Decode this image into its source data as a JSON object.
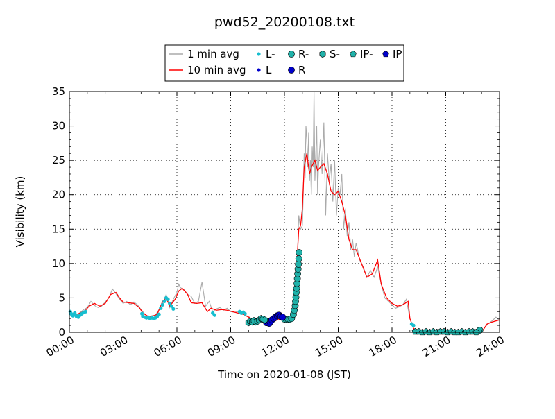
{
  "chart_data": {
    "type": "line",
    "title": "pwd52_20200108.txt",
    "xlabel": "Time on 2020-01-08 (JST)",
    "ylabel": "Visibility (km)",
    "x_unit": "hours since 00:00 JST",
    "xlim": [
      0,
      24
    ],
    "ylim": [
      0,
      35
    ],
    "x_ticks": [
      0,
      3,
      6,
      9,
      12,
      15,
      18,
      21,
      24
    ],
    "x_tick_labels": [
      "00:00",
      "03:00",
      "06:00",
      "09:00",
      "12:00",
      "15:00",
      "18:00",
      "21:00",
      "24:00"
    ],
    "y_ticks": [
      0,
      5,
      10,
      15,
      20,
      25,
      30,
      35
    ],
    "y_tick_labels": [
      "0",
      "5",
      "10",
      "15",
      "20",
      "25",
      "30",
      "35"
    ],
    "grid": true,
    "legend_position": "top-center",
    "legend": [
      {
        "label": "1 min avg",
        "kind": "line",
        "color": "#aaaaaa"
      },
      {
        "label": "L-",
        "kind": "dot",
        "color": "#17becf"
      },
      {
        "label": "R-",
        "kind": "circle",
        "color": "#20b2aa"
      },
      {
        "label": "S-",
        "kind": "hexagon",
        "color": "#20b2aa"
      },
      {
        "label": "IP-",
        "kind": "pentagon",
        "color": "#20b2aa"
      },
      {
        "label": "IP",
        "kind": "pentagon",
        "color": "#0000cc"
      },
      {
        "label": "10 min avg",
        "kind": "line",
        "color": "#ff0000"
      },
      {
        "label": "L",
        "kind": "dot",
        "color": "#0000cc"
      },
      {
        "label": "R",
        "kind": "circle",
        "color": "#0000cc"
      }
    ],
    "series": [
      {
        "name": "10 min avg",
        "color": "#ff0000",
        "x": [
          0.0,
          0.3,
          0.6,
          0.9,
          1.1,
          1.4,
          1.7,
          2.0,
          2.3,
          2.6,
          2.8,
          3.0,
          3.3,
          3.6,
          3.9,
          4.1,
          4.4,
          4.7,
          4.9,
          5.2,
          5.4,
          5.6,
          5.9,
          6.1,
          6.3,
          6.6,
          6.8,
          7.1,
          7.4,
          7.7,
          7.9,
          8.2,
          8.5,
          8.8,
          9.1,
          9.4,
          9.7,
          10.0,
          10.3,
          10.6,
          10.9,
          11.2,
          11.5,
          11.8,
          12.1,
          12.3,
          12.5,
          12.65,
          12.8,
          12.9,
          13.0,
          13.1,
          13.25,
          13.4,
          13.5,
          13.6,
          13.7,
          13.85,
          14.0,
          14.2,
          14.4,
          14.6,
          14.8,
          15.0,
          15.2,
          15.4,
          15.6,
          15.8,
          16.0,
          16.3,
          16.6,
          16.9,
          17.2,
          17.4,
          17.7,
          18.0,
          18.3,
          18.6,
          18.9,
          19.0,
          19.2,
          19.4,
          19.7,
          20.0,
          20.5,
          21.0,
          21.5,
          22.0,
          22.5,
          23.0,
          23.3,
          23.6,
          24.0
        ],
        "y": [
          2.8,
          2.5,
          2.8,
          3.2,
          3.8,
          4.2,
          3.8,
          4.2,
          5.5,
          5.8,
          5.0,
          4.4,
          4.3,
          4.2,
          3.6,
          2.8,
          2.3,
          2.4,
          2.6,
          4.5,
          5.0,
          3.8,
          4.8,
          6.0,
          6.4,
          5.5,
          4.3,
          4.2,
          4.3,
          3.0,
          3.5,
          3.2,
          3.3,
          3.2,
          3.0,
          2.8,
          2.6,
          2.2,
          1.8,
          1.6,
          1.5,
          1.8,
          1.7,
          1.9,
          1.9,
          2.0,
          2.5,
          8.0,
          15.0,
          15.5,
          18.0,
          24.0,
          26.0,
          23.0,
          24.0,
          24.5,
          25.0,
          23.5,
          24.0,
          24.5,
          23.0,
          20.5,
          20.0,
          20.5,
          19.0,
          17.0,
          13.5,
          12.0,
          12.0,
          10.0,
          8.0,
          8.5,
          10.5,
          7.0,
          5.0,
          4.2,
          3.8,
          4.0,
          4.5,
          2.0,
          0.6,
          0.1,
          0.0,
          0.0,
          0.0,
          0.0,
          0.0,
          0.0,
          0.0,
          0.0,
          1.2,
          1.5,
          1.8
        ]
      },
      {
        "name": "1 min avg",
        "color": "#aaaaaa",
        "x": [
          0.0,
          0.2,
          0.4,
          0.6,
          0.8,
          1.0,
          1.2,
          1.4,
          1.6,
          1.8,
          2.0,
          2.2,
          2.4,
          2.6,
          2.8,
          3.0,
          3.2,
          3.4,
          3.6,
          3.8,
          4.0,
          4.2,
          4.4,
          4.6,
          4.8,
          5.0,
          5.2,
          5.4,
          5.6,
          5.8,
          6.0,
          6.1,
          6.2,
          6.4,
          6.6,
          6.8,
          7.0,
          7.2,
          7.4,
          7.6,
          7.8,
          8.0,
          8.2,
          8.4,
          8.6,
          8.8,
          9.0,
          9.2,
          9.4,
          9.6,
          9.8,
          10.0,
          10.2,
          10.4,
          10.6,
          10.8,
          11.0,
          11.2,
          11.4,
          11.6,
          11.8,
          12.0,
          12.2,
          12.4,
          12.55,
          12.7,
          12.8,
          12.9,
          13.0,
          13.05,
          13.1,
          13.15,
          13.2,
          13.25,
          13.3,
          13.35,
          13.4,
          13.45,
          13.5,
          13.55,
          13.6,
          13.65,
          13.7,
          13.75,
          13.8,
          13.85,
          13.9,
          14.0,
          14.1,
          14.2,
          14.3,
          14.4,
          14.5,
          14.6,
          14.7,
          14.8,
          14.9,
          15.0,
          15.1,
          15.2,
          15.3,
          15.4,
          15.5,
          15.6,
          15.7,
          15.8,
          15.9,
          16.0,
          16.2,
          16.4,
          16.6,
          16.8,
          17.0,
          17.2,
          17.4,
          17.6,
          17.8,
          18.0,
          18.2,
          18.4,
          18.6,
          18.8,
          19.0,
          19.2,
          19.4,
          19.6,
          20.0,
          20.5,
          21.0,
          21.5,
          22.0,
          22.5,
          23.0,
          23.2,
          23.4,
          23.6,
          23.8,
          24.0
        ],
        "y": [
          3.0,
          2.6,
          2.4,
          2.9,
          3.3,
          3.6,
          4.5,
          3.9,
          3.6,
          3.8,
          4.4,
          5.0,
          6.3,
          5.6,
          4.8,
          4.2,
          4.5,
          4.0,
          4.4,
          4.0,
          3.3,
          2.7,
          2.2,
          2.4,
          2.5,
          3.3,
          4.2,
          5.5,
          3.6,
          4.8,
          5.8,
          7.0,
          6.5,
          6.2,
          5.5,
          5.2,
          4.2,
          4.5,
          7.3,
          3.8,
          4.5,
          3.0,
          3.4,
          3.6,
          3.2,
          3.5,
          3.0,
          2.9,
          3.0,
          2.7,
          2.5,
          2.3,
          1.9,
          1.7,
          1.5,
          1.6,
          1.4,
          2.0,
          1.7,
          1.9,
          2.6,
          1.7,
          1.8,
          2.1,
          2.6,
          9.0,
          17.0,
          15.0,
          15.5,
          20.0,
          26.0,
          22.5,
          30.0,
          28.0,
          24.0,
          29.0,
          22.0,
          25.0,
          20.0,
          27.0,
          24.0,
          35.0,
          22.0,
          26.0,
          30.0,
          20.0,
          24.0,
          28.0,
          23.0,
          30.5,
          17.0,
          26.0,
          22.0,
          24.5,
          19.0,
          25.0,
          17.0,
          21.0,
          20.0,
          23.0,
          15.0,
          18.0,
          14.0,
          16.0,
          12.0,
          13.5,
          11.0,
          13.0,
          10.5,
          9.5,
          8.0,
          9.0,
          8.0,
          9.5,
          7.0,
          5.0,
          4.5,
          4.0,
          3.5,
          3.7,
          4.0,
          4.8,
          2.0,
          0.5,
          0.1,
          0.0,
          0.0,
          0.0,
          0.0,
          0.0,
          0.0,
          0.0,
          0.0,
          0.8,
          1.3,
          1.7,
          2.2,
          1.7
        ]
      }
    ],
    "markers": [
      {
        "name": "L-",
        "shape": "dot",
        "color": "#17becf",
        "x": [
          0.05,
          0.1,
          0.15,
          0.2,
          0.25,
          0.3,
          0.35,
          0.4,
          0.5,
          0.6,
          0.7,
          0.8,
          0.9,
          4.05,
          4.1,
          4.2,
          4.3,
          4.4,
          4.5,
          4.6,
          4.7,
          4.8,
          4.9,
          5.0,
          5.1,
          5.2,
          5.3,
          5.4,
          5.5,
          5.6,
          5.7,
          5.8,
          8.0,
          8.1,
          9.5,
          9.6,
          9.7,
          9.8,
          19.1,
          19.2
        ],
        "y": [
          3.0,
          2.7,
          2.5,
          2.4,
          2.6,
          2.8,
          2.5,
          2.3,
          2.2,
          2.5,
          2.7,
          2.9,
          3.0,
          2.7,
          2.3,
          2.2,
          2.1,
          2.2,
          2.0,
          2.1,
          2.0,
          2.1,
          2.3,
          2.6,
          3.5,
          4.0,
          4.5,
          5.0,
          4.8,
          4.2,
          3.8,
          3.4,
          2.8,
          2.5,
          3.0,
          2.8,
          2.9,
          2.7,
          1.2,
          1.0
        ]
      },
      {
        "name": "L",
        "shape": "dot",
        "color": "#0000cc",
        "x": [],
        "y": []
      },
      {
        "name": "R-",
        "shape": "circle",
        "color": "#20b2aa",
        "x": [
          12.0,
          12.1,
          12.2,
          12.3,
          12.4,
          12.5,
          12.55,
          12.6,
          12.62,
          12.64,
          12.66,
          12.68,
          12.7,
          12.72,
          12.74,
          12.76,
          12.78,
          12.8,
          12.82,
          22.9
        ],
        "y": [
          1.9,
          1.9,
          1.9,
          1.9,
          2.0,
          2.6,
          3.2,
          3.9,
          4.5,
          5.1,
          5.8,
          6.4,
          7.1,
          7.8,
          8.5,
          9.2,
          9.9,
          10.7,
          11.6,
          0.3
        ]
      },
      {
        "name": "R",
        "shape": "circle",
        "color": "#0000cc",
        "x": [
          11.0,
          11.05,
          11.1,
          11.15,
          11.2,
          11.3,
          11.4,
          11.5,
          11.6,
          11.7,
          11.8,
          11.9
        ],
        "y": [
          1.4,
          1.6,
          1.5,
          1.3,
          1.5,
          1.8,
          2.0,
          2.2,
          2.4,
          2.5,
          2.3,
          2.2
        ]
      },
      {
        "name": "S-",
        "shape": "hexagon",
        "color": "#20b2aa",
        "x": [
          10.0,
          10.1,
          10.2,
          10.3,
          10.4,
          10.5,
          10.6,
          10.7,
          10.8,
          10.9
        ],
        "y": [
          1.4,
          1.6,
          1.5,
          1.7,
          1.5,
          1.6,
          1.8,
          2.0,
          1.9,
          1.8
        ]
      },
      {
        "name": "IP-",
        "shape": "pentagon",
        "color": "#20b2aa",
        "x": [
          19.3,
          19.5,
          19.7,
          19.9,
          20.1,
          20.3,
          20.5,
          20.7,
          20.9,
          21.1,
          21.3,
          21.5,
          21.7,
          21.9,
          22.1,
          22.3,
          22.5,
          22.7
        ],
        "y": [
          0.1,
          0.1,
          0.0,
          0.1,
          0.0,
          0.1,
          0.0,
          0.1,
          0.1,
          0.0,
          0.1,
          0.0,
          0.0,
          0.1,
          0.0,
          0.1,
          0.1,
          0.0
        ]
      },
      {
        "name": "IP",
        "shape": "pentagon",
        "color": "#0000cc",
        "x": [],
        "y": []
      }
    ]
  }
}
